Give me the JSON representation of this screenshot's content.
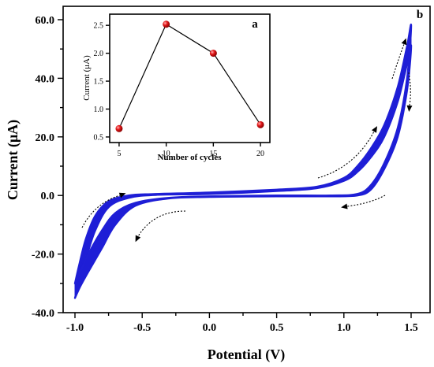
{
  "chart_data": [
    {
      "type": "line",
      "panel_label": "b",
      "xlabel": "Potential (V)",
      "ylabel": "Current (μA)",
      "xlim": [
        -1.0,
        1.5
      ],
      "ylim": [
        -40.0,
        60.0
      ],
      "x_ticks": [
        "-1.0",
        "-0.5",
        "0.0",
        "0.5",
        "1.0",
        "1.5"
      ],
      "y_ticks": [
        "60.0",
        "40.0",
        "20.0",
        "0.0",
        "-20.0",
        "-40.0"
      ],
      "series_color": "#1f1fd6",
      "cycles": 20,
      "first_cycle": {
        "forward": [
          [
            -1.0,
            -35.0
          ],
          [
            -0.97,
            -30.0
          ],
          [
            -0.92,
            -22.0
          ],
          [
            -0.85,
            -12.0
          ],
          [
            -0.75,
            -4.0
          ],
          [
            -0.6,
            -0.8
          ],
          [
            -0.4,
            0.2
          ],
          [
            0.0,
            0.5
          ],
          [
            0.5,
            1.5
          ],
          [
            0.8,
            2.5
          ],
          [
            1.0,
            5.0
          ],
          [
            1.1,
            8.0
          ],
          [
            1.2,
            13.0
          ],
          [
            1.3,
            20.0
          ],
          [
            1.4,
            32.0
          ],
          [
            1.47,
            45.0
          ],
          [
            1.5,
            51.0
          ]
        ],
        "reverse": [
          [
            1.5,
            51.0
          ],
          [
            1.47,
            36.0
          ],
          [
            1.4,
            20.0
          ],
          [
            1.3,
            9.0
          ],
          [
            1.2,
            2.0
          ],
          [
            1.1,
            0.0
          ],
          [
            0.9,
            -0.3
          ],
          [
            0.5,
            -0.3
          ],
          [
            0.0,
            -0.5
          ],
          [
            -0.3,
            -1.0
          ],
          [
            -0.55,
            -3.5
          ],
          [
            -0.7,
            -10.0
          ],
          [
            -0.8,
            -18.0
          ],
          [
            -0.9,
            -26.0
          ],
          [
            -0.96,
            -31.0
          ],
          [
            -1.0,
            -35.0
          ]
        ]
      },
      "last_cycle": {
        "forward": [
          [
            -1.0,
            -30.0
          ],
          [
            -0.97,
            -24.0
          ],
          [
            -0.92,
            -15.0
          ],
          [
            -0.85,
            -7.0
          ],
          [
            -0.75,
            -2.0
          ],
          [
            -0.6,
            0.0
          ],
          [
            -0.4,
            0.5
          ],
          [
            0.0,
            1.0
          ],
          [
            0.5,
            2.0
          ],
          [
            0.8,
            3.0
          ],
          [
            1.0,
            6.0
          ],
          [
            1.1,
            10.0
          ],
          [
            1.2,
            16.0
          ],
          [
            1.3,
            24.0
          ],
          [
            1.4,
            37.0
          ],
          [
            1.47,
            51.0
          ],
          [
            1.5,
            58.0
          ]
        ],
        "reverse": [
          [
            1.5,
            58.0
          ],
          [
            1.47,
            40.0
          ],
          [
            1.4,
            23.0
          ],
          [
            1.3,
            11.0
          ],
          [
            1.2,
            3.5
          ],
          [
            1.1,
            0.5
          ],
          [
            0.9,
            0.0
          ],
          [
            0.5,
            0.0
          ],
          [
            0.0,
            -0.3
          ],
          [
            -0.3,
            -0.8
          ],
          [
            -0.55,
            -2.5
          ],
          [
            -0.7,
            -6.0
          ],
          [
            -0.8,
            -12.0
          ],
          [
            -0.9,
            -20.0
          ],
          [
            -0.96,
            -26.0
          ],
          [
            -1.0,
            -30.0
          ]
        ]
      },
      "grid": false
    },
    {
      "type": "line",
      "panel_label": "a",
      "xlabel": "Number of cycles",
      "ylabel": "Current (μA)",
      "xlim": [
        4,
        21
      ],
      "ylim": [
        0.4,
        2.7
      ],
      "x_ticks": [
        "5",
        "10",
        "15",
        "20"
      ],
      "y_ticks": [
        "2.5",
        "2.0",
        "1.5",
        "1.0",
        "0.5"
      ],
      "x": [
        5,
        10,
        15,
        20
      ],
      "values": [
        0.65,
        2.52,
        2.0,
        0.72
      ],
      "marker_color": "#e41a1c",
      "line_color": "#000000",
      "grid": false
    }
  ]
}
